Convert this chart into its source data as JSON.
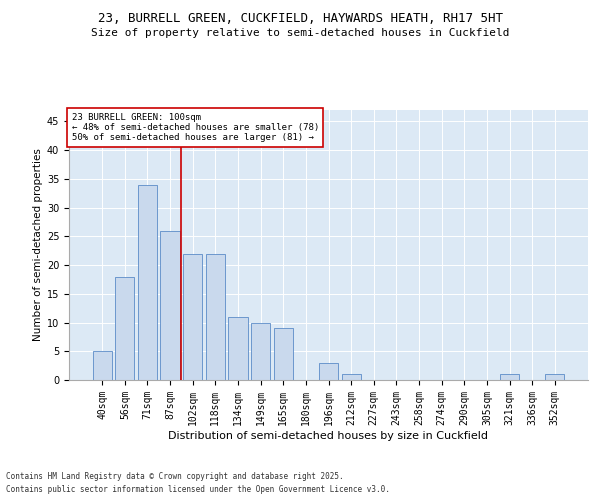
{
  "title1": "23, BURRELL GREEN, CUCKFIELD, HAYWARDS HEATH, RH17 5HT",
  "title2": "Size of property relative to semi-detached houses in Cuckfield",
  "xlabel": "Distribution of semi-detached houses by size in Cuckfield",
  "ylabel": "Number of semi-detached properties",
  "categories": [
    "40sqm",
    "56sqm",
    "71sqm",
    "87sqm",
    "102sqm",
    "118sqm",
    "134sqm",
    "149sqm",
    "165sqm",
    "180sqm",
    "196sqm",
    "212sqm",
    "227sqm",
    "243sqm",
    "258sqm",
    "274sqm",
    "290sqm",
    "305sqm",
    "321sqm",
    "336sqm",
    "352sqm"
  ],
  "values": [
    5,
    18,
    34,
    26,
    22,
    22,
    11,
    10,
    9,
    0,
    3,
    1,
    0,
    0,
    0,
    0,
    0,
    0,
    1,
    0,
    1
  ],
  "bar_color": "#c9d9ed",
  "bar_edge_color": "#5b8cc8",
  "vline_x": 3.5,
  "vline_color": "#cc0000",
  "annotation_title": "23 BURRELL GREEN: 100sqm",
  "annotation_line1": "← 48% of semi-detached houses are smaller (78)",
  "annotation_line2": "50% of semi-detached houses are larger (81) →",
  "annotation_box_color": "#cc0000",
  "ylim": [
    0,
    47
  ],
  "yticks": [
    0,
    5,
    10,
    15,
    20,
    25,
    30,
    35,
    40,
    45
  ],
  "background_color": "#dce9f5",
  "footer1": "Contains HM Land Registry data © Crown copyright and database right 2025.",
  "footer2": "Contains public sector information licensed under the Open Government Licence v3.0.",
  "title1_fontsize": 9,
  "title2_fontsize": 8,
  "xlabel_fontsize": 8,
  "ylabel_fontsize": 7.5,
  "tick_fontsize": 7,
  "annotation_fontsize": 6.5,
  "footer_fontsize": 5.5
}
